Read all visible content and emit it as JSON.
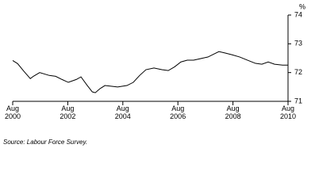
{
  "chart_data": {
    "type": "line",
    "y_label": "%",
    "source": "Source: Labour Force Survey.",
    "x": [
      2000.58,
      2000.76,
      2000.99,
      2001.22,
      2001.33,
      2001.56,
      2001.91,
      2002.14,
      2002.37,
      2002.6,
      2002.89,
      2003.06,
      2003.29,
      2003.47,
      2003.58,
      2003.75,
      2003.93,
      2004.21,
      2004.39,
      2004.73,
      2004.96,
      2005.19,
      2005.42,
      2005.71,
      2006.0,
      2006.23,
      2006.46,
      2006.69,
      2006.92,
      2007.15,
      2007.38,
      2007.67,
      2007.9,
      2008.07,
      2008.3,
      2008.54,
      2008.83,
      2009.11,
      2009.4,
      2009.63,
      2009.86,
      2010.09,
      2010.38,
      2010.58
    ],
    "values": [
      72.42,
      72.31,
      72.04,
      71.79,
      71.87,
      72.0,
      71.9,
      71.87,
      71.76,
      71.66,
      71.76,
      71.85,
      71.55,
      71.33,
      71.3,
      71.44,
      71.55,
      71.52,
      71.5,
      71.55,
      71.66,
      71.9,
      72.1,
      72.16,
      72.1,
      72.07,
      72.2,
      72.37,
      72.43,
      72.43,
      72.48,
      72.54,
      72.65,
      72.73,
      72.68,
      72.62,
      72.54,
      72.43,
      72.32,
      72.29,
      72.37,
      72.29,
      72.26,
      72.26
    ],
    "color": "#000000",
    "xlim": [
      2000.58,
      2010.58
    ],
    "xticks": [
      {
        "value": 2000.58,
        "label": [
          "Aug",
          "2000"
        ]
      },
      {
        "value": 2002.58,
        "label": [
          "Aug",
          "2002"
        ]
      },
      {
        "value": 2004.58,
        "label": [
          "Aug",
          "2004"
        ]
      },
      {
        "value": 2006.58,
        "label": [
          "Aug",
          "2006"
        ]
      },
      {
        "value": 2008.58,
        "label": [
          "Aug",
          "2008"
        ]
      },
      {
        "value": 2010.58,
        "label": [
          "Aug",
          "2010"
        ]
      }
    ],
    "ylim": [
      71,
      74
    ],
    "yticks": [
      71,
      72,
      73,
      74
    ],
    "y_axis_side": "right"
  }
}
